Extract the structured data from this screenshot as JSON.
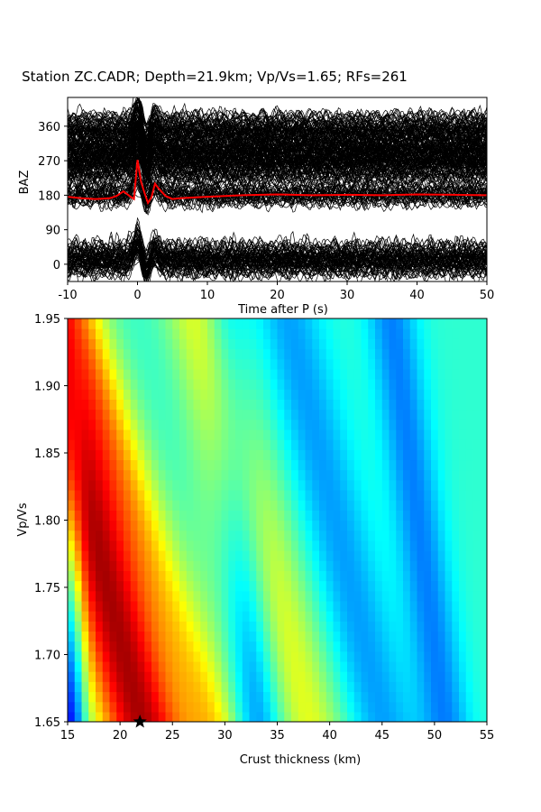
{
  "chart_data": [
    {
      "type": "line",
      "title": "Station ZC.CADR; Depth=21.9km; Vp/Vs=1.65; RFs=261",
      "xlabel": "Time after P (s)",
      "ylabel": "BAZ",
      "xlim": [
        -10,
        50
      ],
      "ylim": [
        -45,
        435
      ],
      "x_ticks": [
        -10,
        0,
        10,
        20,
        30,
        40,
        50
      ],
      "y_ticks": [
        0,
        90,
        180,
        270,
        360
      ],
      "series": [
        {
          "kind": "stacked-receiver-function",
          "color": "#ff0000",
          "baz": 180,
          "x": [
            -10,
            -8,
            -6,
            -4,
            -3,
            -2,
            -1,
            -0.5,
            0,
            0.5,
            1,
            1.5,
            2,
            2.5,
            3,
            4,
            5,
            6,
            8,
            10,
            15,
            20,
            25,
            30,
            35,
            40,
            45,
            50
          ],
          "y": [
            176,
            172,
            170,
            172,
            178,
            190,
            176,
            170,
            272,
            215,
            186,
            160,
            175,
            210,
            198,
            178,
            170,
            172,
            174,
            176,
            180,
            182,
            180,
            181,
            180,
            182,
            181,
            180
          ]
        }
      ],
      "traces": {
        "count": 261,
        "color": "#000000",
        "baz_clusters": [
          0,
          25,
          180,
          245,
          270,
          300,
          330,
          360
        ]
      }
    },
    {
      "type": "heatmap",
      "xlabel": "Crust thickness (km)",
      "ylabel": "Vp/Vs",
      "xlim": [
        15,
        55
      ],
      "ylim": [
        1.65,
        1.95
      ],
      "x_ticks": [
        15,
        20,
        25,
        30,
        35,
        40,
        45,
        50,
        55
      ],
      "y_ticks": [
        "1.65",
        "1.70",
        "1.75",
        "1.80",
        "1.85",
        "1.90",
        "1.95"
      ],
      "colormap": "jet",
      "best_fit": {
        "thickness": 21.9,
        "vpvs": 1.65,
        "marker": "star"
      }
    }
  ]
}
